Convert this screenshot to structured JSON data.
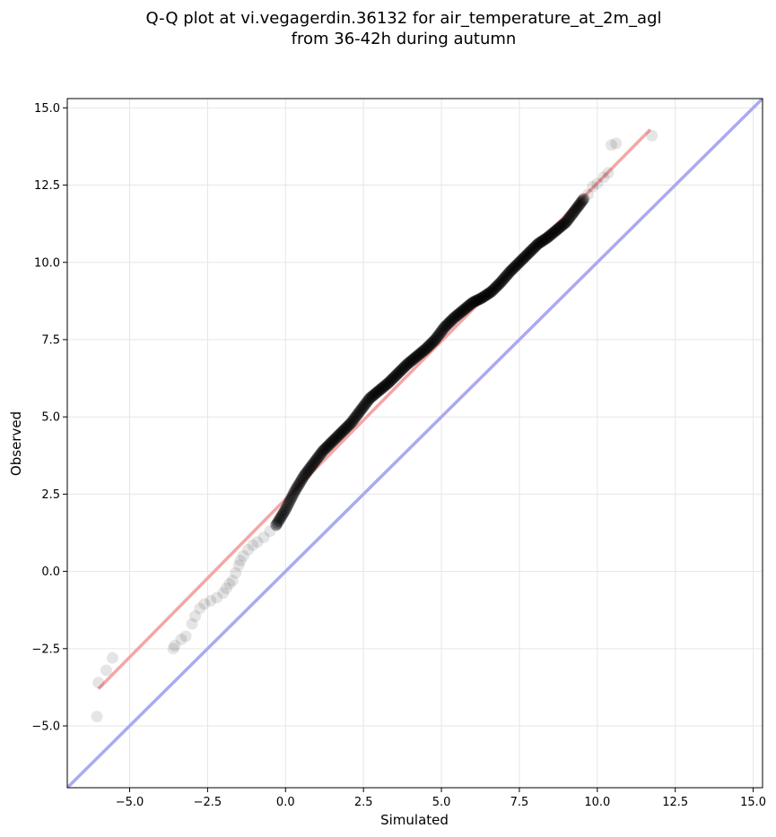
{
  "chart_data": {
    "type": "scatter",
    "title_line1": "Q-Q plot at vi.vegagerdin.36132 for air_temperature_at_2m_agl",
    "title_line2": "from 36-42h during autumn",
    "xlabel": "Simulated",
    "ylabel": "Observed",
    "xlim": [
      -7.0,
      15.3
    ],
    "ylim": [
      -7.0,
      15.3
    ],
    "grid": true,
    "xticks": [
      "−5.0",
      "−2.5",
      "0.0",
      "2.5",
      "5.0",
      "7.5",
      "10.0",
      "12.5",
      "15.0"
    ],
    "yticks": [
      "−5.0",
      "−2.5",
      "0.0",
      "2.5",
      "5.0",
      "7.5",
      "10.0",
      "12.5",
      "15.0"
    ],
    "tick_values": [
      -5.0,
      -2.5,
      0.0,
      2.5,
      5.0,
      7.5,
      10.0,
      12.5,
      15.0
    ],
    "identity_line": {
      "color": "#aaaaf0"
    },
    "fit_line": {
      "x": [
        -6.0,
        11.7
      ],
      "y": [
        -3.8,
        14.3
      ],
      "color": "#f4a6a6"
    },
    "point_color": "#000000",
    "tail_points": {
      "x": [
        -6.05,
        -6.0,
        -5.75,
        -5.55,
        -3.6,
        -3.55,
        -3.35,
        -3.2,
        -3.0,
        -2.9,
        -2.75,
        -2.6,
        -2.4,
        -2.2,
        -2.0,
        -1.9,
        -1.8,
        -1.7,
        -1.6,
        -1.5,
        -1.45,
        -1.35,
        -1.2,
        -1.05,
        -0.9,
        -0.7,
        -0.5,
        -0.3,
        9.7,
        9.85,
        10.0,
        10.2,
        10.35,
        10.45,
        10.6,
        11.75
      ],
      "y": [
        -4.7,
        -3.6,
        -3.2,
        -2.8,
        -2.5,
        -2.4,
        -2.2,
        -2.1,
        -1.7,
        -1.45,
        -1.2,
        -1.05,
        -0.95,
        -0.85,
        -0.7,
        -0.55,
        -0.4,
        -0.3,
        -0.05,
        0.2,
        0.35,
        0.5,
        0.7,
        0.85,
        0.95,
        1.1,
        1.3,
        1.5,
        12.2,
        12.45,
        12.55,
        12.75,
        12.9,
        13.8,
        13.85,
        14.1
      ]
    },
    "body_curve": {
      "x": [
        -0.3,
        0.0,
        0.3,
        0.6,
        0.9,
        1.2,
        1.5,
        1.8,
        2.1,
        2.4,
        2.7,
        3.0,
        3.3,
        3.6,
        3.9,
        4.2,
        4.5,
        4.8,
        5.1,
        5.4,
        5.7,
        6.0,
        6.3,
        6.6,
        6.9,
        7.2,
        7.5,
        7.8,
        8.1,
        8.4,
        8.7,
        9.0,
        9.3,
        9.6
      ],
      "y": [
        1.5,
        2.0,
        2.6,
        3.1,
        3.5,
        3.9,
        4.2,
        4.5,
        4.8,
        5.2,
        5.6,
        5.85,
        6.1,
        6.4,
        6.7,
        6.95,
        7.2,
        7.5,
        7.9,
        8.2,
        8.45,
        8.7,
        8.85,
        9.05,
        9.35,
        9.7,
        10.0,
        10.3,
        10.6,
        10.8,
        11.05,
        11.3,
        11.7,
        12.1
      ]
    }
  }
}
